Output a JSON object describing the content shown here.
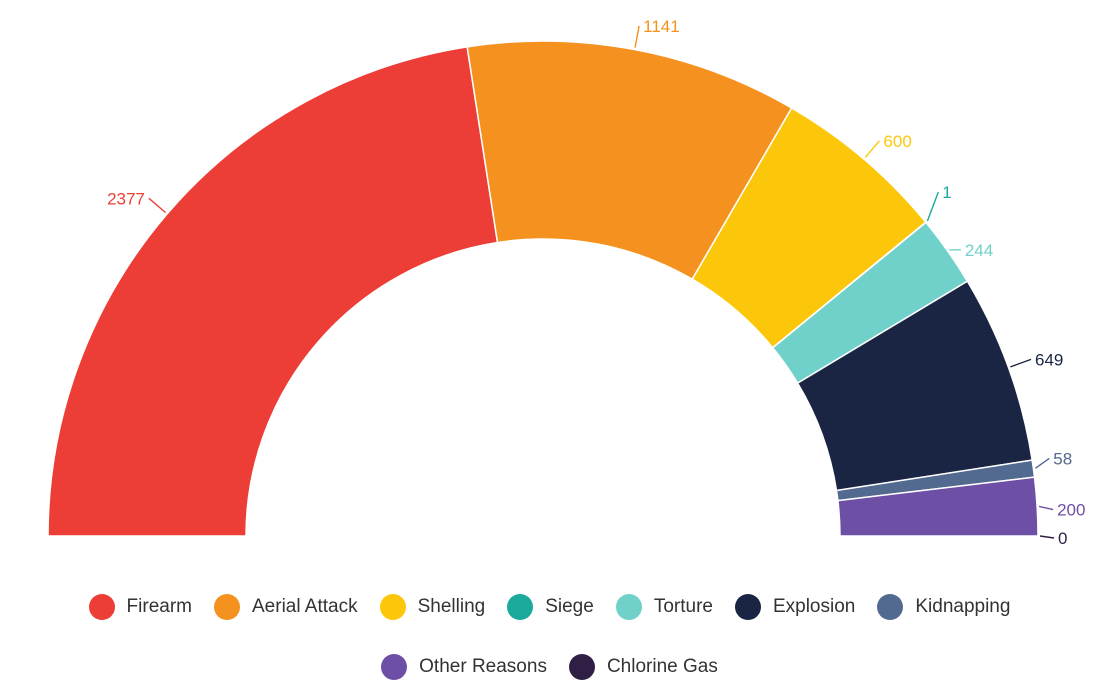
{
  "chart_data": {
    "type": "pie",
    "variant": "semi-donut",
    "title": "",
    "categories": [
      "Firearm",
      "Aerial Attack",
      "Shelling",
      "Siege",
      "Torture",
      "Explosion",
      "Kidnapping",
      "Other Reasons",
      "Chlorine Gas"
    ],
    "values": [
      2377,
      1141,
      600,
      1,
      244,
      649,
      58,
      200,
      0
    ],
    "colors": [
      "#ec3e36",
      "#f5921f",
      "#fcc70a",
      "#1aa99a",
      "#6fd1c9",
      "#192543",
      "#526990",
      "#6d4fa6",
      "#2f1f45"
    ],
    "legend_position": "bottom"
  },
  "legend": {
    "row1": [
      "Firearm",
      "Aerial Attack",
      "Shelling",
      "Siege",
      "Torture",
      "Explosion",
      "Kidnapping"
    ],
    "row2": [
      "Other Reasons",
      "Chlorine Gas"
    ]
  }
}
